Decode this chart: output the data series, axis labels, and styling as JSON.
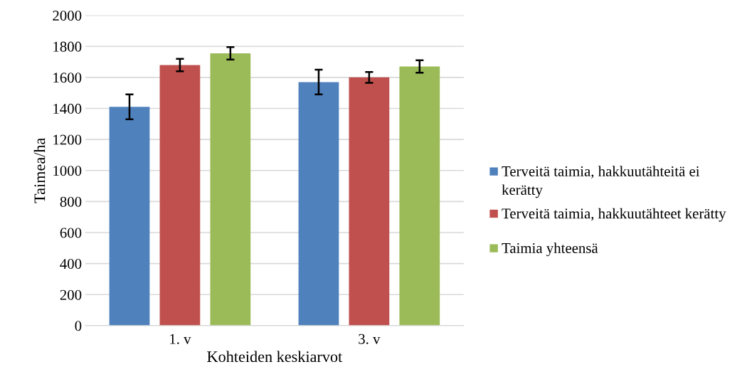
{
  "chart_data": {
    "type": "bar",
    "categories": [
      "1. v",
      "3. v"
    ],
    "xlabel": "Kohteiden keskiarvot",
    "ylabel": "Taimea/ha",
    "series": [
      {
        "name": "Terveitä taimia, hakkuutähteitä ei kerätty",
        "color": "#4f81bd",
        "values": [
          1410,
          1570
        ],
        "errors": [
          80,
          80
        ]
      },
      {
        "name": "Terveitä taimia, hakkuutähteet kerätty",
        "color": "#c0504d",
        "values": [
          1680,
          1600
        ],
        "errors": [
          40,
          35
        ]
      },
      {
        "name": "Taimia yhteensä",
        "color": "#9bbb59",
        "values": [
          1755,
          1670
        ],
        "errors": [
          40,
          40
        ]
      }
    ],
    "ylim": [
      0,
      2000
    ],
    "yticks": [
      0,
      200,
      400,
      600,
      800,
      1000,
      1200,
      1400,
      1600,
      1800,
      2000
    ],
    "grid": "y",
    "legend": "right"
  }
}
